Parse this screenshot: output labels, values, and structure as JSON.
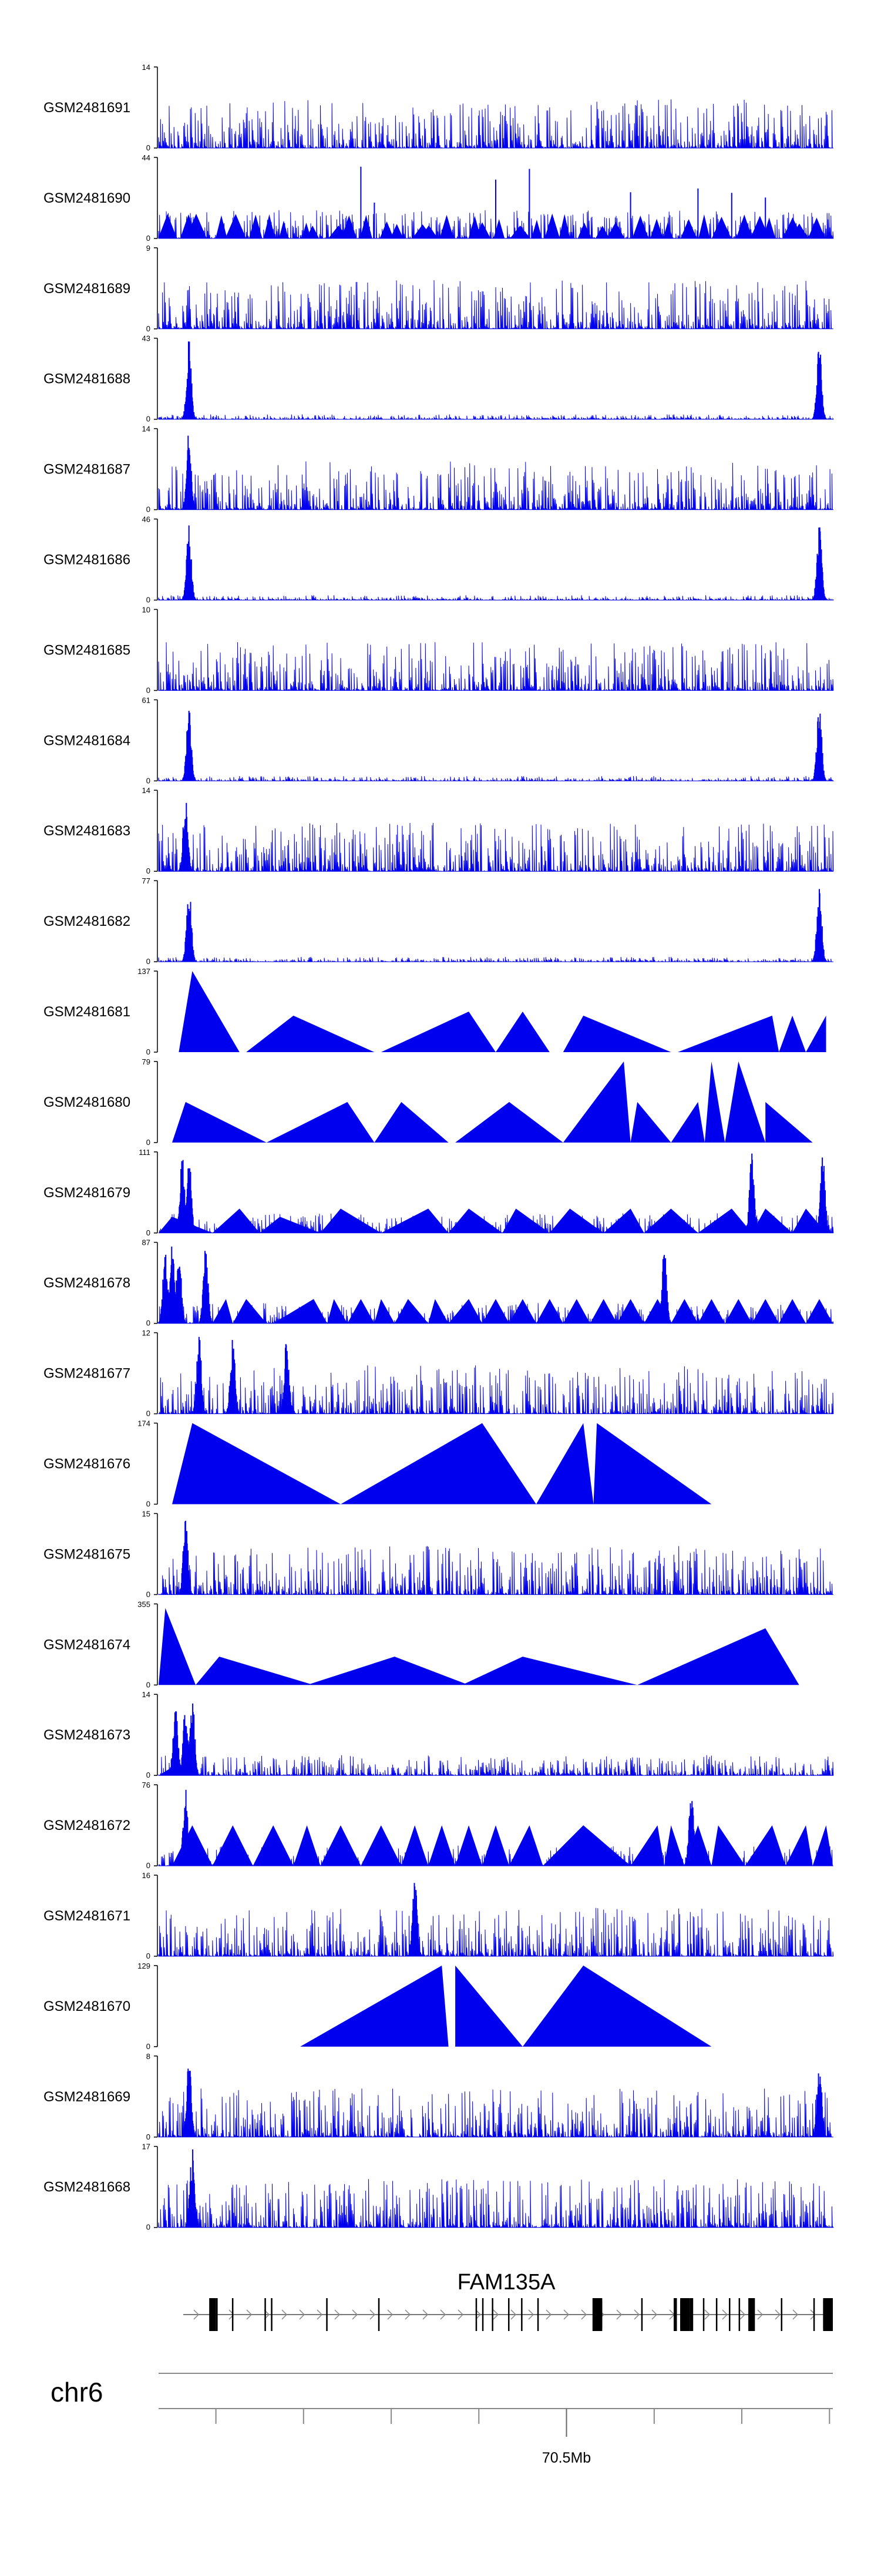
{
  "chart_data": {
    "type": "area",
    "description": "Genome browser coverage tracks",
    "colors": {
      "signal": "#0000ee",
      "axis": "#000000",
      "exon": "#000000",
      "intron": "#777777"
    },
    "tracks": [
      {
        "name": "GSM2481691",
        "ymin": "0",
        "ymax": "14",
        "style": "noisy",
        "peaks": []
      },
      {
        "name": "GSM2481690",
        "ymin": "0",
        "ymax": "44",
        "style": "sparse",
        "peaks": []
      },
      {
        "name": "GSM2481689",
        "ymin": "0",
        "ymax": "9",
        "style": "noisy",
        "peaks": []
      },
      {
        "name": "GSM2481688",
        "ymin": "0",
        "ymax": "43",
        "style": "peaky",
        "peaks": [
          0.045,
          0.98
        ]
      },
      {
        "name": "GSM2481687",
        "ymin": "0",
        "ymax": "14",
        "style": "noisy",
        "peaks": [
          0.045
        ]
      },
      {
        "name": "GSM2481686",
        "ymin": "0",
        "ymax": "46",
        "style": "peaky",
        "peaks": [
          0.045,
          0.98
        ]
      },
      {
        "name": "GSM2481685",
        "ymin": "0",
        "ymax": "10",
        "style": "noisy",
        "peaks": []
      },
      {
        "name": "GSM2481684",
        "ymin": "0",
        "ymax": "61",
        "style": "peaky",
        "peaks": [
          0.045,
          0.98
        ]
      },
      {
        "name": "GSM2481683",
        "ymin": "0",
        "ymax": "14",
        "style": "noisy",
        "peaks": [
          0.04
        ]
      },
      {
        "name": "GSM2481682",
        "ymin": "0",
        "ymax": "77",
        "style": "peaky",
        "peaks": [
          0.045,
          0.98
        ]
      },
      {
        "name": "GSM2481681",
        "ymin": "0",
        "ymax": "137",
        "style": "triangles",
        "triangles": [
          [
            0.03,
            0.05,
            0.12,
            1.0
          ],
          [
            0.13,
            0.2,
            0.32,
            0.45
          ],
          [
            0.33,
            0.46,
            0.5,
            0.5
          ],
          [
            0.5,
            0.54,
            0.58,
            0.5
          ],
          [
            0.6,
            0.63,
            0.63,
            0.45
          ],
          [
            0.63,
            0.63,
            0.76,
            0.45
          ],
          [
            0.77,
            0.91,
            0.92,
            0.45
          ],
          [
            0.92,
            0.94,
            0.96,
            0.45
          ],
          [
            0.96,
            0.99,
            0.99,
            0.45
          ]
        ]
      },
      {
        "name": "GSM2481680",
        "ymin": "0",
        "ymax": "79",
        "style": "triangles",
        "triangles": [
          [
            0.02,
            0.04,
            0.16,
            0.5
          ],
          [
            0.16,
            0.28,
            0.32,
            0.5
          ],
          [
            0.32,
            0.36,
            0.43,
            0.5
          ],
          [
            0.44,
            0.52,
            0.6,
            0.5
          ],
          [
            0.6,
            0.69,
            0.7,
            1.0
          ],
          [
            0.7,
            0.71,
            0.76,
            0.5
          ],
          [
            0.76,
            0.8,
            0.81,
            0.5
          ],
          [
            0.81,
            0.82,
            0.84,
            1.0
          ],
          [
            0.84,
            0.845,
            0.84,
            0.6
          ],
          [
            0.84,
            0.86,
            0.9,
            1.0
          ],
          [
            0.9,
            0.9,
            0.97,
            0.5
          ]
        ]
      },
      {
        "name": "GSM2481679",
        "ymin": "0",
        "ymax": "111",
        "style": "mixed",
        "triangles": [
          [
            0.0,
            0.02,
            0.08,
            0.2
          ],
          [
            0.08,
            0.12,
            0.15,
            0.3
          ],
          [
            0.15,
            0.18,
            0.24,
            0.2
          ],
          [
            0.24,
            0.27,
            0.33,
            0.3
          ],
          [
            0.33,
            0.4,
            0.43,
            0.3
          ],
          [
            0.43,
            0.46,
            0.51,
            0.3
          ],
          [
            0.51,
            0.53,
            0.58,
            0.3
          ],
          [
            0.58,
            0.61,
            0.66,
            0.3
          ],
          [
            0.66,
            0.7,
            0.72,
            0.3
          ],
          [
            0.72,
            0.76,
            0.8,
            0.3
          ],
          [
            0.8,
            0.85,
            0.88,
            0.3
          ],
          [
            0.88,
            0.9,
            0.94,
            0.3
          ],
          [
            0.94,
            0.96,
            0.99,
            0.3
          ]
        ],
        "peaks": [
          0.035,
          0.045,
          0.88,
          0.985
        ]
      },
      {
        "name": "GSM2481678",
        "ymin": "0",
        "ymax": "87",
        "style": "mixed",
        "triangles": [
          [
            0.08,
            0.1,
            0.11,
            0.3
          ],
          [
            0.11,
            0.13,
            0.16,
            0.3
          ],
          [
            0.17,
            0.23,
            0.25,
            0.3
          ],
          [
            0.25,
            0.26,
            0.28,
            0.3
          ],
          [
            0.28,
            0.3,
            0.32,
            0.3
          ],
          [
            0.32,
            0.33,
            0.35,
            0.3
          ],
          [
            0.35,
            0.37,
            0.4,
            0.3
          ],
          [
            0.4,
            0.41,
            0.43,
            0.3
          ],
          [
            0.43,
            0.46,
            0.48,
            0.3
          ],
          [
            0.48,
            0.5,
            0.52,
            0.3
          ],
          [
            0.52,
            0.54,
            0.56,
            0.3
          ],
          [
            0.56,
            0.58,
            0.6,
            0.3
          ],
          [
            0.6,
            0.62,
            0.64,
            0.3
          ],
          [
            0.64,
            0.66,
            0.68,
            0.3
          ],
          [
            0.68,
            0.7,
            0.72,
            0.3
          ],
          [
            0.72,
            0.74,
            0.76,
            0.3
          ],
          [
            0.76,
            0.78,
            0.8,
            0.3
          ],
          [
            0.8,
            0.82,
            0.84,
            0.3
          ],
          [
            0.84,
            0.86,
            0.88,
            0.3
          ],
          [
            0.88,
            0.9,
            0.92,
            0.3
          ],
          [
            0.92,
            0.94,
            0.96,
            0.3
          ],
          [
            0.96,
            0.98,
            1.0,
            0.3
          ]
        ],
        "peaks": [
          0.01,
          0.02,
          0.03,
          0.07,
          0.75
        ]
      },
      {
        "name": "GSM2481677",
        "ymin": "0",
        "ymax": "12",
        "style": "noisy",
        "peaks": [
          0.06,
          0.11,
          0.19
        ]
      },
      {
        "name": "GSM2481676",
        "ymin": "0",
        "ymax": "174",
        "style": "triangles",
        "triangles": [
          [
            0.02,
            0.05,
            0.27,
            1.0
          ],
          [
            0.27,
            0.48,
            0.56,
            1.0
          ],
          [
            0.56,
            0.63,
            0.645,
            1.0
          ],
          [
            0.645,
            0.65,
            0.82,
            1.0
          ]
        ]
      },
      {
        "name": "GSM2481675",
        "ymin": "0",
        "ymax": "15",
        "style": "noisy",
        "peaks": [
          0.04
        ]
      },
      {
        "name": "GSM2481674",
        "ymin": "0",
        "ymax": "355",
        "style": "triangles",
        "triangles": [
          [
            0.0,
            0.01,
            0.055,
            0.95
          ],
          [
            0.055,
            0.09,
            0.23,
            0.35
          ],
          [
            0.22,
            0.35,
            0.46,
            0.35
          ],
          [
            0.45,
            0.54,
            0.71,
            0.35
          ],
          [
            0.71,
            0.9,
            0.95,
            0.7
          ]
        ]
      },
      {
        "name": "GSM2481673",
        "ymin": "0",
        "ymax": "14",
        "style": "mixed",
        "triangles": [
          [
            0.0,
            0.02,
            0.03,
            0.1
          ]
        ],
        "peaks": [
          0.025,
          0.04,
          0.05
        ]
      },
      {
        "name": "GSM2481672",
        "ymin": "0",
        "ymax": "76",
        "style": "mixed",
        "triangles": [
          [
            0.02,
            0.05,
            0.08,
            0.5
          ],
          [
            0.08,
            0.11,
            0.14,
            0.5
          ],
          [
            0.14,
            0.17,
            0.2,
            0.5
          ],
          [
            0.2,
            0.22,
            0.24,
            0.5
          ],
          [
            0.24,
            0.27,
            0.3,
            0.5
          ],
          [
            0.3,
            0.33,
            0.36,
            0.5
          ],
          [
            0.36,
            0.38,
            0.4,
            0.5
          ],
          [
            0.4,
            0.42,
            0.44,
            0.5
          ],
          [
            0.44,
            0.46,
            0.48,
            0.5
          ],
          [
            0.48,
            0.5,
            0.52,
            0.5
          ],
          [
            0.52,
            0.55,
            0.57,
            0.5
          ],
          [
            0.57,
            0.63,
            0.7,
            0.5
          ],
          [
            0.7,
            0.74,
            0.75,
            0.5
          ],
          [
            0.75,
            0.76,
            0.78,
            0.5
          ],
          [
            0.78,
            0.8,
            0.82,
            0.5
          ],
          [
            0.82,
            0.83,
            0.87,
            0.5
          ],
          [
            0.87,
            0.91,
            0.93,
            0.5
          ],
          [
            0.93,
            0.96,
            0.97,
            0.5
          ],
          [
            0.97,
            0.99,
            1.0,
            0.5
          ]
        ],
        "peaks": [
          0.04,
          0.79
        ]
      },
      {
        "name": "GSM2481671",
        "ymin": "0",
        "ymax": "16",
        "style": "noisy",
        "peaks": [
          0.38
        ]
      },
      {
        "name": "GSM2481670",
        "ymin": "0",
        "ymax": "129",
        "style": "triangles",
        "triangles": [
          [
            0.21,
            0.42,
            0.43,
            1.0
          ],
          [
            0.44,
            0.44,
            0.54,
            1.0
          ],
          [
            0.54,
            0.63,
            0.82,
            1.0
          ],
          [
            0.63,
            0.63,
            0.63,
            1.0
          ]
        ]
      },
      {
        "name": "GSM2481669",
        "ymin": "0",
        "ymax": "8",
        "style": "noisy",
        "peaks": [
          0.045,
          0.98
        ]
      },
      {
        "name": "GSM2481668",
        "ymin": "0",
        "ymax": "17",
        "style": "noisy",
        "peaks": [
          0.05
        ]
      }
    ],
    "gene": {
      "name": "FAM135A",
      "strand": "+",
      "exons": [
        [
          0.04,
          0.05
        ],
        [
          0.05,
          0.053
        ],
        [
          0.075,
          0.077
        ],
        [
          0.125,
          0.127
        ],
        [
          0.135,
          0.137
        ],
        [
          0.22,
          0.222
        ],
        [
          0.3,
          0.302
        ],
        [
          0.45,
          0.452
        ],
        [
          0.46,
          0.462
        ],
        [
          0.475,
          0.477
        ],
        [
          0.5,
          0.502
        ],
        [
          0.52,
          0.522
        ],
        [
          0.545,
          0.547
        ],
        [
          0.63,
          0.645
        ],
        [
          0.705,
          0.707
        ],
        [
          0.755,
          0.76
        ],
        [
          0.765,
          0.78
        ],
        [
          0.78,
          0.785
        ],
        [
          0.8,
          0.802
        ],
        [
          0.82,
          0.822
        ],
        [
          0.84,
          0.842
        ],
        [
          0.855,
          0.857
        ],
        [
          0.87,
          0.872
        ],
        [
          0.87,
          0.88
        ],
        [
          0.92,
          0.922
        ],
        [
          0.97,
          0.972
        ],
        [
          0.985,
          1.0
        ]
      ],
      "tall_exons": [
        [
          0.632,
          0.645
        ],
        [
          0.765,
          0.78
        ],
        [
          0.985,
          1.0
        ]
      ]
    },
    "chromosome": {
      "name": "chr6",
      "tick_label": "70.5Mb",
      "tick_positions": [
        0.085,
        0.215,
        0.345,
        0.475,
        0.605,
        0.735,
        0.865,
        0.995
      ],
      "labeled_tick_position": 0.605
    }
  }
}
